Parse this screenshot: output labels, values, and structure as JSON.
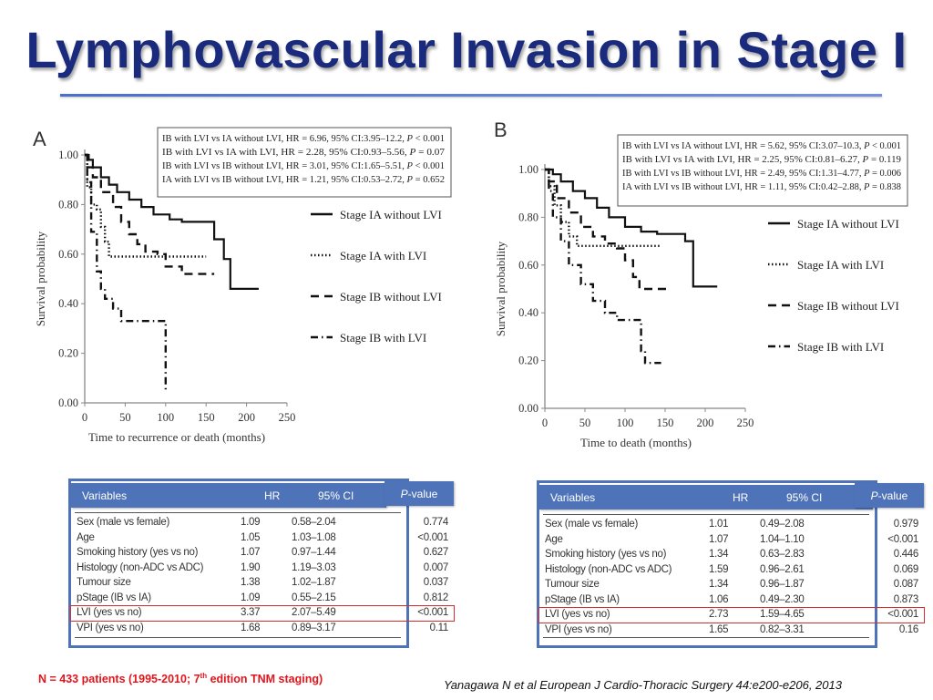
{
  "slide": {
    "title": "Lymphovascular Invasion in Stage I",
    "note": {
      "prefix": "N = 433 patients (1995-2010; 7",
      "sup": "th",
      "suffix": " edition TNM staging)"
    },
    "citation": "Yanagawa N et al European J Cardio-Thoracic Surgery 44:e200-e206, 2013"
  },
  "chart_data": [
    {
      "type": "line",
      "panel": "A",
      "xlabel": "Time to recurrence or death (months)",
      "ylabel": "Survival probability",
      "xlim": [
        0,
        250
      ],
      "ylim": [
        0,
        1
      ],
      "x_ticks": [
        "0",
        "50",
        "100",
        "150",
        "200",
        "250"
      ],
      "y_ticks": [
        "0.00",
        "0.20",
        "0.40",
        "0.60",
        "0.80",
        "1.00"
      ],
      "stats": [
        [
          "IB with LVI vs IA without LVI, HR = 6.96, 95% CI:3.95–12.2, ",
          "P",
          " < 0.001"
        ],
        [
          "IB with LVI vs IA with LVI, HR = 2.28, 95% CI:0.93–5.56, ",
          "P",
          " = 0.07"
        ],
        [
          "IB with LVI vs IB without LVI, HR = 3.01, 95% CI:1.65–5.51, ",
          "P",
          " < 0.001"
        ],
        [
          "IA with LVI vs IB without LVI, HR = 1.21, 95% CI:0.53–2.72, ",
          "P",
          " = 0.652"
        ]
      ],
      "series": [
        {
          "name": "Stage IA without LVI",
          "style": "solid",
          "x": [
            0,
            5,
            10,
            20,
            30,
            40,
            55,
            70,
            85,
            105,
            120,
            140,
            155,
            160,
            172,
            180,
            190,
            215
          ],
          "y": [
            1.0,
            0.98,
            0.95,
            0.91,
            0.88,
            0.85,
            0.82,
            0.79,
            0.76,
            0.74,
            0.73,
            0.73,
            0.73,
            0.66,
            0.58,
            0.46,
            0.46,
            0.46
          ]
        },
        {
          "name": "Stage IA with LVI",
          "style": "dotted",
          "x": [
            0,
            3,
            8,
            15,
            20,
            25,
            30,
            150
          ],
          "y": [
            1.0,
            0.87,
            0.8,
            0.78,
            0.71,
            0.65,
            0.59,
            0.59
          ]
        },
        {
          "name": "Stage IB without LVI",
          "style": "dashed",
          "x": [
            0,
            3,
            10,
            20,
            35,
            45,
            55,
            65,
            75,
            90,
            100,
            120,
            145,
            160
          ],
          "y": [
            1.0,
            0.95,
            0.91,
            0.85,
            0.79,
            0.73,
            0.68,
            0.64,
            0.61,
            0.6,
            0.55,
            0.52,
            0.52,
            0.52
          ]
        },
        {
          "name": "Stage IB with LVI",
          "style": "dashdot",
          "x": [
            0,
            3,
            8,
            15,
            20,
            25,
            35,
            45,
            60,
            75,
            88,
            98,
            100
          ],
          "y": [
            1.0,
            0.89,
            0.69,
            0.53,
            0.46,
            0.42,
            0.38,
            0.33,
            0.33,
            0.33,
            0.33,
            0.33,
            0.04
          ]
        }
      ]
    },
    {
      "type": "line",
      "panel": "B",
      "xlabel": "Time to death (months)",
      "ylabel": "Survival probability",
      "xlim": [
        0,
        250
      ],
      "ylim": [
        0,
        1
      ],
      "x_ticks": [
        "0",
        "50",
        "100",
        "150",
        "200",
        "250"
      ],
      "y_ticks": [
        "0.00",
        "0.20",
        "0.40",
        "0.60",
        "0.80",
        "1.00"
      ],
      "stats": [
        [
          "IB with LVI vs IA without LVI, HR = 5.62, 95% CI:3.07–10.3, ",
          "P",
          " < 0.001"
        ],
        [
          "IB with LVI vs IA with LVI, HR = 2.25, 95% CI:0.81–6.27, ",
          "P",
          " = 0.119"
        ],
        [
          "IB with LVI vs IB without LVI, HR = 2.49, 95% CI:1.31–4.77, ",
          "P",
          " = 0.006"
        ],
        [
          "IA with LVI vs IB without LVI, HR = 1.11, 95% CI:0.42–2.88, ",
          "P",
          " = 0.838"
        ]
      ],
      "series": [
        {
          "name": "Stage IA without LVI",
          "style": "solid",
          "x": [
            0,
            10,
            20,
            35,
            50,
            65,
            80,
            100,
            120,
            140,
            160,
            175,
            185,
            215
          ],
          "y": [
            1.0,
            0.98,
            0.95,
            0.91,
            0.88,
            0.84,
            0.8,
            0.76,
            0.74,
            0.73,
            0.73,
            0.7,
            0.51,
            0.51
          ]
        },
        {
          "name": "Stage IA with LVI",
          "style": "dotted",
          "x": [
            0,
            5,
            12,
            20,
            30,
            40,
            50,
            145
          ],
          "y": [
            1.0,
            0.93,
            0.85,
            0.78,
            0.72,
            0.68,
            0.68,
            0.68
          ]
        },
        {
          "name": "Stage IB without LVI",
          "style": "dashed",
          "x": [
            0,
            5,
            15,
            30,
            45,
            60,
            75,
            90,
            100,
            110,
            118,
            125,
            155
          ],
          "y": [
            1.0,
            0.95,
            0.88,
            0.82,
            0.76,
            0.72,
            0.69,
            0.67,
            0.62,
            0.55,
            0.5,
            0.5,
            0.5
          ]
        },
        {
          "name": "Stage IB with LVI",
          "style": "dashdot",
          "x": [
            0,
            5,
            10,
            20,
            30,
            45,
            60,
            75,
            90,
            105,
            120,
            125,
            145
          ],
          "y": [
            1.0,
            0.91,
            0.8,
            0.7,
            0.6,
            0.52,
            0.45,
            0.4,
            0.37,
            0.37,
            0.24,
            0.19,
            0.19
          ]
        }
      ]
    }
  ],
  "tables": [
    {
      "headers": {
        "variables": "Variables",
        "hr": "HR",
        "ci": "95% CI",
        "p_italic": "P",
        "p_rest": "-value"
      },
      "rows": [
        {
          "variable": "Sex (male vs female)",
          "hr": "1.09",
          "ci": "0.58–2.04",
          "p": "0.774"
        },
        {
          "variable": "Age",
          "hr": "1.05",
          "ci": "1.03–1.08",
          "p": "<0.001"
        },
        {
          "variable": "Smoking history (yes vs no)",
          "hr": "1.07",
          "ci": "0.97–1.44",
          "p": "0.627"
        },
        {
          "variable": "Histology (non-ADC vs ADC)",
          "hr": "1.90",
          "ci": "1.19–3.03",
          "p": "0.007"
        },
        {
          "variable": "Tumour size",
          "hr": "1.38",
          "ci": "1.02–1.87",
          "p": "0.037"
        },
        {
          "variable": "pStage (IB vs IA)",
          "hr": "1.09",
          "ci": "0.55–2.15",
          "p": "0.812"
        },
        {
          "variable": "LVI (yes vs no)",
          "hr": "3.37",
          "ci": "2.07–5.49",
          "p": "<0.001",
          "highlight": true
        },
        {
          "variable": "VPI (yes vs no)",
          "hr": "1.68",
          "ci": "0.89–3.17",
          "p": "0.11"
        }
      ]
    },
    {
      "headers": {
        "variables": "Variables",
        "hr": "HR",
        "ci": "95% CI",
        "p_italic": "P",
        "p_rest": "-value"
      },
      "rows": [
        {
          "variable": "Sex (male vs female)",
          "hr": "1.01",
          "ci": "0.49–2.08",
          "p": "0.979"
        },
        {
          "variable": "Age",
          "hr": "1.07",
          "ci": "1.04–1.10",
          "p": "<0.001"
        },
        {
          "variable": "Smoking history (yes vs no)",
          "hr": "1.34",
          "ci": "0.63–2.83",
          "p": "0.446"
        },
        {
          "variable": "Histology (non-ADC vs ADC)",
          "hr": "1.59",
          "ci": "0.96–2.61",
          "p": "0.069"
        },
        {
          "variable": "Tumour size",
          "hr": "1.34",
          "ci": "0.96–1.87",
          "p": "0.087"
        },
        {
          "variable": "pStage (IB vs IA)",
          "hr": "1.06",
          "ci": "0.49–2.30",
          "p": "0.873"
        },
        {
          "variable": "LVI (yes vs no)",
          "hr": "2.73",
          "ci": "1.59–4.65",
          "p": "<0.001",
          "highlight": true
        },
        {
          "variable": "VPI (yes vs no)",
          "hr": "1.65",
          "ci": "0.82–3.31",
          "p": "0.16"
        }
      ]
    }
  ]
}
